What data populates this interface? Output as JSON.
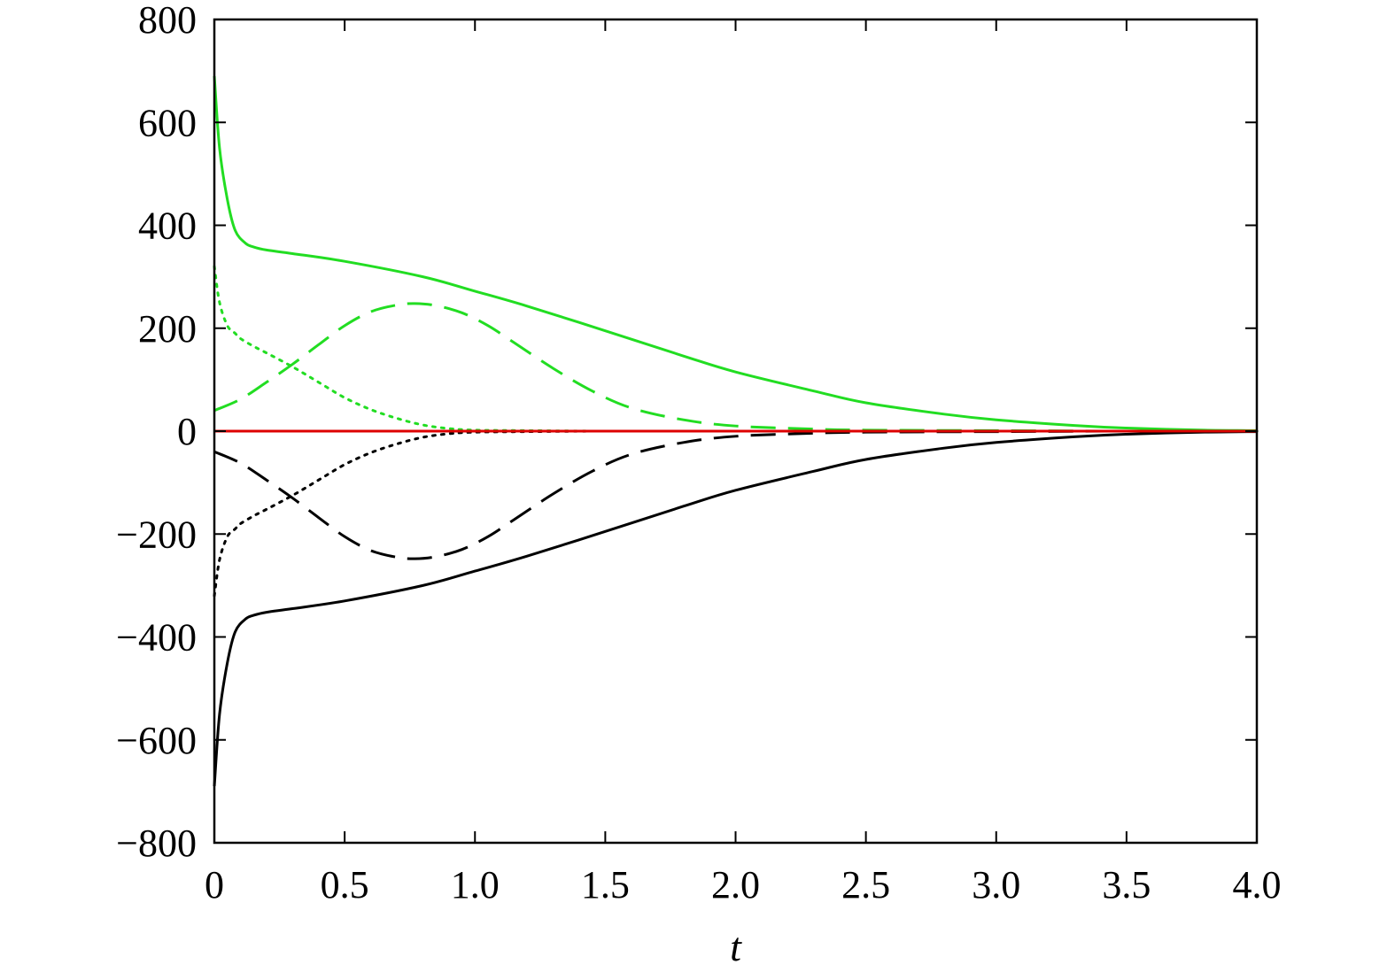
{
  "chart_data": {
    "type": "line",
    "title": "",
    "xlabel": "t",
    "ylabel": "",
    "xlim": [
      0,
      4
    ],
    "ylim": [
      -800,
      800
    ],
    "grid": false,
    "legend": "none",
    "x_ticks": [
      0,
      0.5,
      1.0,
      1.5,
      2.0,
      2.5,
      3.0,
      3.5,
      4.0
    ],
    "x_tick_labels": [
      "0",
      "0.5",
      "1.0",
      "1.5",
      "2.0",
      "2.5",
      "3.0",
      "3.5",
      "4.0"
    ],
    "y_ticks": [
      -800,
      -600,
      -400,
      -200,
      0,
      200,
      400,
      600,
      800
    ],
    "y_tick_labels": [
      "−800",
      "−600",
      "−400",
      "−200",
      "0",
      "200",
      "400",
      "600",
      "800"
    ],
    "series": [
      {
        "color": "#22dd22",
        "style": "solid",
        "x": [
          0,
          0.02,
          0.05,
          0.08,
          0.12,
          0.15,
          0.2,
          0.3,
          0.5,
          0.8,
          1.0,
          1.2,
          1.5,
          1.8,
          2.0,
          2.3,
          2.5,
          2.8,
          3.0,
          3.3,
          3.5,
          3.8,
          4.0
        ],
        "y": [
          690,
          550,
          450,
          390,
          365,
          358,
          352,
          345,
          330,
          300,
          272,
          243,
          195,
          146,
          115,
          78,
          55,
          33,
          22,
          11,
          6,
          2,
          1
        ]
      },
      {
        "color": "#22dd22",
        "style": "dashed",
        "x": [
          0,
          0.1,
          0.2,
          0.3,
          0.4,
          0.5,
          0.6,
          0.7,
          0.77,
          0.85,
          0.95,
          1.05,
          1.15,
          1.3,
          1.45,
          1.6,
          1.8,
          2.0,
          2.3,
          2.5,
          3.0,
          3.5,
          4.0
        ],
        "y": [
          40,
          62,
          95,
          130,
          168,
          205,
          232,
          245,
          248,
          244,
          230,
          205,
          172,
          122,
          78,
          45,
          22,
          10,
          4,
          2,
          1,
          0,
          0
        ]
      },
      {
        "color": "#22dd22",
        "style": "dotted",
        "x": [
          0,
          0.02,
          0.05,
          0.08,
          0.1,
          0.15,
          0.2,
          0.3,
          0.4,
          0.5,
          0.6,
          0.7,
          0.8,
          0.9,
          1.0,
          1.2,
          1.5,
          2.0,
          4.0
        ],
        "y": [
          320,
          250,
          205,
          190,
          180,
          165,
          152,
          125,
          95,
          65,
          42,
          25,
          12,
          5,
          2,
          1,
          0,
          0,
          0
        ]
      },
      {
        "color": "#000000",
        "style": "solid",
        "x": [
          0,
          0.02,
          0.05,
          0.08,
          0.12,
          0.15,
          0.2,
          0.3,
          0.5,
          0.8,
          1.0,
          1.2,
          1.5,
          1.8,
          2.0,
          2.3,
          2.5,
          2.8,
          3.0,
          3.3,
          3.5,
          3.8,
          4.0
        ],
        "y": [
          -690,
          -550,
          -450,
          -390,
          -365,
          -358,
          -352,
          -345,
          -330,
          -300,
          -272,
          -243,
          -195,
          -146,
          -115,
          -78,
          -55,
          -33,
          -22,
          -11,
          -6,
          -2,
          -1
        ]
      },
      {
        "color": "#000000",
        "style": "dashed",
        "x": [
          0,
          0.1,
          0.2,
          0.3,
          0.4,
          0.5,
          0.6,
          0.7,
          0.77,
          0.85,
          0.95,
          1.05,
          1.15,
          1.3,
          1.45,
          1.6,
          1.8,
          2.0,
          2.3,
          2.5,
          3.0,
          3.5,
          4.0
        ],
        "y": [
          -40,
          -62,
          -95,
          -130,
          -168,
          -205,
          -232,
          -245,
          -248,
          -244,
          -230,
          -205,
          -172,
          -122,
          -78,
          -45,
          -22,
          -10,
          -4,
          -2,
          -1,
          0,
          0
        ]
      },
      {
        "color": "#000000",
        "style": "dotted",
        "x": [
          0,
          0.02,
          0.05,
          0.08,
          0.1,
          0.15,
          0.2,
          0.3,
          0.4,
          0.5,
          0.6,
          0.7,
          0.8,
          0.9,
          1.0,
          1.2,
          1.5,
          2.0,
          4.0
        ],
        "y": [
          -320,
          -250,
          -205,
          -190,
          -180,
          -165,
          -152,
          -125,
          -95,
          -65,
          -42,
          -25,
          -12,
          -5,
          -2,
          -1,
          0,
          0,
          0
        ]
      },
      {
        "color": "#dd0000",
        "style": "solid",
        "x": [
          0,
          4.0
        ],
        "y": [
          0,
          0
        ]
      }
    ]
  }
}
